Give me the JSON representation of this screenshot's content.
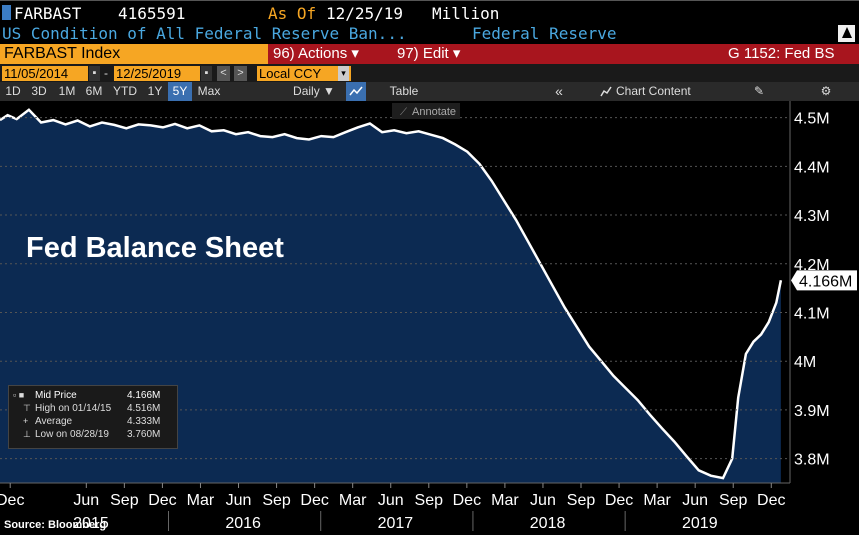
{
  "header": {
    "ticker_code": "FARBAST",
    "value": "4165591",
    "as_of_label": "As Of",
    "as_of_date": "12/25/19",
    "units": "Million"
  },
  "subheader": {
    "description": "US Condition of All Federal Reserve Ban...",
    "source": "Federal Reserve"
  },
  "toolbar": {
    "index_name": "FARBAST Index",
    "actions_label": "96) Actions ▾",
    "edit_label": "97) Edit ▾",
    "code_label": "G 1152: Fed BS"
  },
  "range": {
    "start": "11/05/2014",
    "end": "12/25/2019",
    "currency": "Local CCY"
  },
  "periods": [
    "1D",
    "3D",
    "1M",
    "6M",
    "YTD",
    "1Y",
    "5Y",
    "Max"
  ],
  "active_period": "5Y",
  "frequency": "Daily ▼",
  "table_label": "Table",
  "collapse_label": "«",
  "chart_content_label": "Chart Content",
  "annotate_label": "Annotate",
  "chart_title": "Fed Balance Sheet",
  "last_value_label": "4.166M",
  "legend": {
    "mid_label": "Mid Price",
    "mid_value": "4.166M",
    "high_label": "High on 01/14/15",
    "high_value": "4.516M",
    "avg_label": "Average",
    "avg_value": "4.333M",
    "low_label": "Low on 08/28/19",
    "low_value": "3.760M"
  },
  "source_label": "Source: Bloomberg",
  "colors": {
    "fill": "#0c2a52",
    "line": "#ffffff",
    "orange": "#f6a623",
    "red": "#a8151e",
    "accent_blue": "#4aa8e0"
  },
  "chart_data": {
    "type": "area",
    "ylim": [
      3.75,
      4.53
    ],
    "yticks": [
      "4.5M",
      "4.4M",
      "4.3M",
      "4.2M",
      "4.1M",
      "4M",
      "3.9M",
      "3.8M"
    ],
    "ytick_values": [
      4.5,
      4.4,
      4.3,
      4.2,
      4.1,
      4.0,
      3.9,
      3.8
    ],
    "xticks_months": [
      "Dec",
      "Jun",
      "Sep",
      "Dec",
      "Mar",
      "Jun",
      "Sep",
      "Dec",
      "Mar",
      "Jun",
      "Sep",
      "Dec",
      "Mar",
      "Jun",
      "Sep",
      "Dec",
      "Mar",
      "Jun",
      "Sep",
      "Dec"
    ],
    "xticks_t": [
      2014.917,
      2015.417,
      2015.667,
      2015.917,
      2016.167,
      2016.417,
      2016.667,
      2016.917,
      2017.167,
      2017.417,
      2017.667,
      2017.917,
      2018.167,
      2018.417,
      2018.667,
      2018.917,
      2019.167,
      2019.417,
      2019.667,
      2019.917
    ],
    "year_labels": [
      "2015",
      "2016",
      "2017",
      "2018",
      "2019"
    ],
    "year_t": [
      2015.5,
      2016.5,
      2017.5,
      2018.5,
      2019.5
    ],
    "xlim": [
      2014.85,
      2020.04
    ],
    "series": [
      {
        "x": [
          2014.85,
          2014.9,
          2014.96,
          2015.04,
          2015.12,
          2015.2,
          2015.28,
          2015.36,
          2015.44,
          2015.52,
          2015.6,
          2015.68,
          2015.76,
          2015.84,
          2015.92,
          2016.0,
          2016.08,
          2016.16,
          2016.24,
          2016.32,
          2016.4,
          2016.48,
          2016.56,
          2016.64,
          2016.72,
          2016.8,
          2016.88,
          2016.96,
          2017.04,
          2017.12,
          2017.2,
          2017.28,
          2017.36,
          2017.44,
          2017.52,
          2017.6,
          2017.68,
          2017.76,
          2017.84,
          2017.92,
          2018.0,
          2018.08,
          2018.16,
          2018.24,
          2018.32,
          2018.4,
          2018.48,
          2018.56,
          2018.64,
          2018.72,
          2018.8,
          2018.88,
          2018.96,
          2019.04,
          2019.12,
          2019.2,
          2019.28,
          2019.36,
          2019.44,
          2019.52,
          2019.6,
          2019.66,
          2019.7,
          2019.75,
          2019.8,
          2019.85,
          2019.9,
          2019.95,
          2019.98
        ],
        "y": [
          4.495,
          4.505,
          4.497,
          4.516,
          4.49,
          4.495,
          4.486,
          4.494,
          4.482,
          4.49,
          4.485,
          4.478,
          4.486,
          4.484,
          4.48,
          4.487,
          4.478,
          4.484,
          4.472,
          4.474,
          4.466,
          4.47,
          4.462,
          4.46,
          4.466,
          4.458,
          4.455,
          4.462,
          4.46,
          4.47,
          4.48,
          4.488,
          4.47,
          4.474,
          4.468,
          4.472,
          4.465,
          4.458,
          4.445,
          4.43,
          4.405,
          4.37,
          4.33,
          4.29,
          4.245,
          4.2,
          4.155,
          4.11,
          4.07,
          4.03,
          4.0,
          3.97,
          3.945,
          3.92,
          3.89,
          3.862,
          3.835,
          3.805,
          3.776,
          3.765,
          3.76,
          3.8,
          3.925,
          4.015,
          4.04,
          4.055,
          4.08,
          4.12,
          4.166
        ]
      }
    ]
  }
}
